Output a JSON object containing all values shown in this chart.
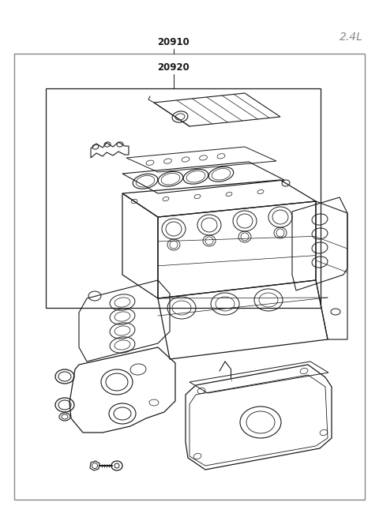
{
  "title": "2.4L",
  "label_20910": "20910",
  "label_20920": "20920",
  "bg_color": "#ffffff",
  "line_color": "#1a1a1a",
  "border_color": "#888888",
  "title_fontsize": 10,
  "label_fontsize": 8.5,
  "fig_w": 4.8,
  "fig_h": 6.55,
  "dpi": 100
}
